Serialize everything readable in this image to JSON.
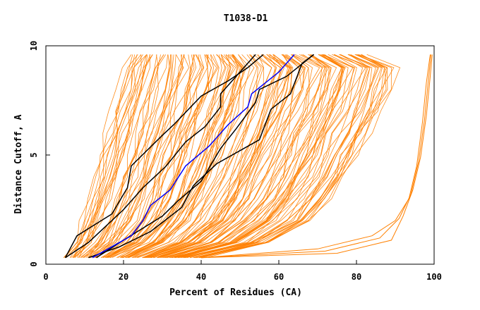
{
  "chart_data": {
    "type": "line",
    "title": "T1038-D1",
    "xlabel": "Percent of Residues (CA)",
    "ylabel": "Distance Cutoff, A",
    "xlim": [
      0,
      100
    ],
    "ylim": [
      0,
      10
    ],
    "xticks": [
      "0",
      "20",
      "40",
      "60",
      "80",
      "100"
    ],
    "yticks": [
      "0",
      "5",
      "10"
    ],
    "grid": false,
    "legend": "none",
    "colors": {
      "bundle": "#ff8000",
      "highlight": "#000000",
      "median": "#0000ff"
    },
    "series_bundle": {
      "name": "",
      "color": "#ff8000",
      "count": 150,
      "cutoffs": [
        0.3,
        1,
        2,
        3,
        4,
        5,
        6,
        7,
        8,
        9,
        9.6
      ],
      "left_edge": [
        5,
        7,
        9,
        11,
        12.5,
        14,
        15.5,
        17,
        18.5,
        20,
        22
      ],
      "right_edge": [
        40,
        58,
        68,
        73,
        77,
        80,
        83,
        86,
        88.5,
        90,
        82
      ]
    },
    "outlier_series": [
      {
        "name": "",
        "x": [
          40,
          70,
          84,
          90,
          93.5,
          95.5,
          97,
          98,
          99
        ],
        "y": [
          0.3,
          0.7,
          1.3,
          2.0,
          3.0,
          4.5,
          6.5,
          8.3,
          9.6
        ]
      },
      {
        "name": "",
        "x": [
          40,
          72,
          86,
          91,
          94,
          96,
          97.5,
          98.5,
          99.2
        ],
        "y": [
          0.3,
          0.6,
          1.2,
          2.1,
          3.2,
          4.7,
          6.6,
          8.4,
          9.6
        ]
      },
      {
        "name": "",
        "x": [
          40,
          75,
          89,
          92,
          94.5,
          96.5,
          98,
          99,
          99.5
        ],
        "y": [
          0.3,
          0.5,
          1.1,
          2.2,
          3.4,
          4.9,
          6.8,
          8.6,
          9.6
        ]
      }
    ],
    "highlight_series": [
      {
        "name": "",
        "x": [
          5,
          8,
          17,
          21,
          22,
          30,
          33,
          40,
          47,
          52,
          56
        ],
        "y": [
          0.3,
          1.3,
          2.3,
          3.5,
          4.5,
          5.9,
          6.4,
          7.7,
          8.4,
          9.0,
          9.6
        ]
      },
      {
        "name": "",
        "x": [
          5,
          11,
          20,
          25,
          31,
          36,
          41,
          45,
          45,
          49,
          54
        ],
        "y": [
          0.3,
          1.0,
          2.5,
          3.5,
          4.5,
          5.6,
          6.3,
          7.2,
          7.8,
          8.6,
          9.6
        ]
      },
      {
        "name": "",
        "x": [
          13,
          20,
          30,
          34,
          40,
          45,
          49,
          54,
          55,
          62,
          69
        ],
        "y": [
          0.3,
          1.1,
          2.2,
          2.9,
          3.8,
          5.3,
          6.2,
          7.4,
          8.0,
          8.6,
          9.6
        ]
      },
      {
        "name": "",
        "x": [
          11,
          19,
          27,
          35,
          38,
          44,
          55,
          58,
          63,
          66,
          69
        ],
        "y": [
          0.3,
          0.8,
          1.5,
          2.6,
          3.6,
          4.6,
          5.7,
          7.1,
          7.8,
          9.2,
          9.6
        ]
      }
    ],
    "median_series": {
      "name": "",
      "x": [
        12,
        22,
        25,
        27,
        32,
        36,
        42,
        47,
        52,
        53,
        60,
        64
      ],
      "y": [
        0.3,
        1.3,
        2.0,
        2.7,
        3.4,
        4.5,
        5.4,
        6.4,
        7.2,
        7.8,
        8.8,
        9.6
      ]
    }
  }
}
